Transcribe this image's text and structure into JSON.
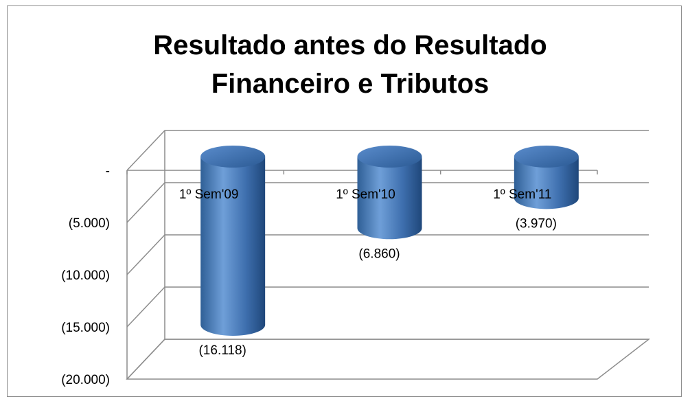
{
  "chart_data": {
    "type": "bar",
    "title": "Resultado antes do Resultado Financeiro e Tributos",
    "categories": [
      "1º Sem'09",
      "1º Sem'10",
      "1º Sem'11"
    ],
    "values": [
      -16118,
      -6860,
      -3970
    ],
    "value_labels": [
      "(16.118)",
      "(6.860)",
      "(3.970)"
    ],
    "color": "#4f81bd",
    "ylim": [
      -20000,
      0
    ],
    "yticks": [
      {
        "value": 0,
        "label": "-"
      },
      {
        "value": -5000,
        "label": "(5.000)"
      },
      {
        "value": -10000,
        "label": "(10.000)"
      },
      {
        "value": -15000,
        "label": "(15.000)"
      },
      {
        "value": -20000,
        "label": "(20.000)"
      }
    ],
    "grid": true
  }
}
